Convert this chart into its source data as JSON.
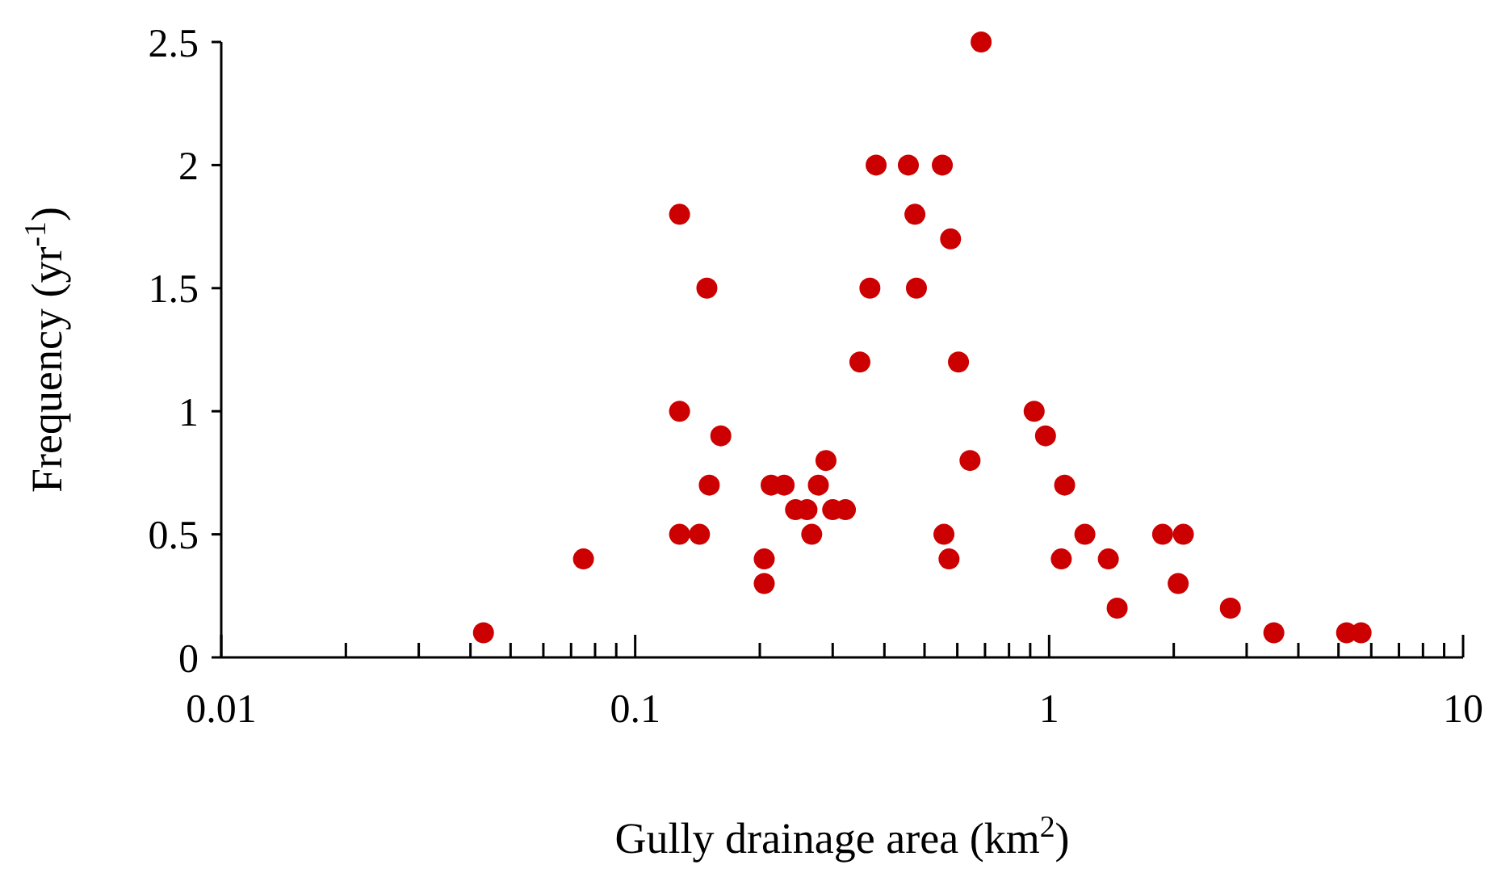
{
  "chart_data": {
    "type": "scatter",
    "xlabel": "Gully drainage area (km$^{2}$)",
    "ylabel": "Frequency (yr$^{-1}$)",
    "log": "x",
    "marker": "circle",
    "grid": false,
    "xlim": [
      0.01,
      10
    ],
    "ylim": [
      0,
      2.5
    ],
    "yticks": [
      0,
      0.5,
      1,
      1.5,
      2,
      2.5
    ],
    "xticks": [
      0.01,
      {
        "value": 0.02,
        "label": null
      },
      {
        "value": 0.03,
        "label": null
      },
      {
        "value": 0.04,
        "label": null
      },
      {
        "value": 0.05,
        "label": null
      },
      {
        "value": 0.06,
        "label": null
      },
      {
        "value": 0.07,
        "label": null
      },
      {
        "value": 0.08,
        "label": null
      },
      {
        "value": 0.09,
        "label": null
      },
      0.1,
      {
        "value": 0.2,
        "label": null
      },
      {
        "value": 0.3,
        "label": null
      },
      {
        "value": 0.4,
        "label": null
      },
      {
        "value": 0.5,
        "label": null
      },
      {
        "value": 0.6,
        "label": null
      },
      {
        "value": 0.7,
        "label": null
      },
      {
        "value": 0.8,
        "label": null
      },
      {
        "value": 0.9,
        "label": null
      },
      1,
      {
        "value": 2,
        "label": null
      },
      {
        "value": 3,
        "label": null
      },
      {
        "value": 4,
        "label": null
      },
      {
        "value": 5,
        "label": null
      },
      {
        "value": 6,
        "label": null
      },
      {
        "value": 7,
        "label": null
      },
      {
        "value": 8,
        "label": null
      },
      {
        "value": 9,
        "label": null
      },
      10
    ],
    "series": [
      {
        "color": "#cc0000",
        "x": [
          0.043,
          0.075,
          0.128,
          0.128,
          0.128,
          0.149,
          0.151,
          0.143,
          0.161,
          0.205,
          0.205,
          0.213,
          0.229,
          0.244,
          0.26,
          0.267,
          0.277,
          0.289,
          0.3,
          0.322,
          0.349,
          0.369,
          0.382,
          0.457,
          0.474,
          0.478,
          0.552,
          0.557,
          0.573,
          0.578,
          0.604,
          0.644,
          0.685,
          0.92,
          0.98,
          1.09,
          1.07,
          1.22,
          1.39,
          1.46,
          1.88,
          2.11,
          2.05,
          2.74,
          3.49,
          5.23,
          5.67
        ],
        "values": [
          0.1,
          0.4,
          1.8,
          1.0,
          0.5,
          1.5,
          0.7,
          0.5,
          0.9,
          0.4,
          0.3,
          0.7,
          0.7,
          0.6,
          0.6,
          0.5,
          0.7,
          0.8,
          0.6,
          0.6,
          1.2,
          1.5,
          2.0,
          2.0,
          1.8,
          1.5,
          2.0,
          0.5,
          0.4,
          1.7,
          1.2,
          0.8,
          2.5,
          1.0,
          0.9,
          0.7,
          0.4,
          0.5,
          0.4,
          0.2,
          0.5,
          0.5,
          0.3,
          0.2,
          0.1,
          0.1,
          0.1
        ]
      }
    ]
  }
}
